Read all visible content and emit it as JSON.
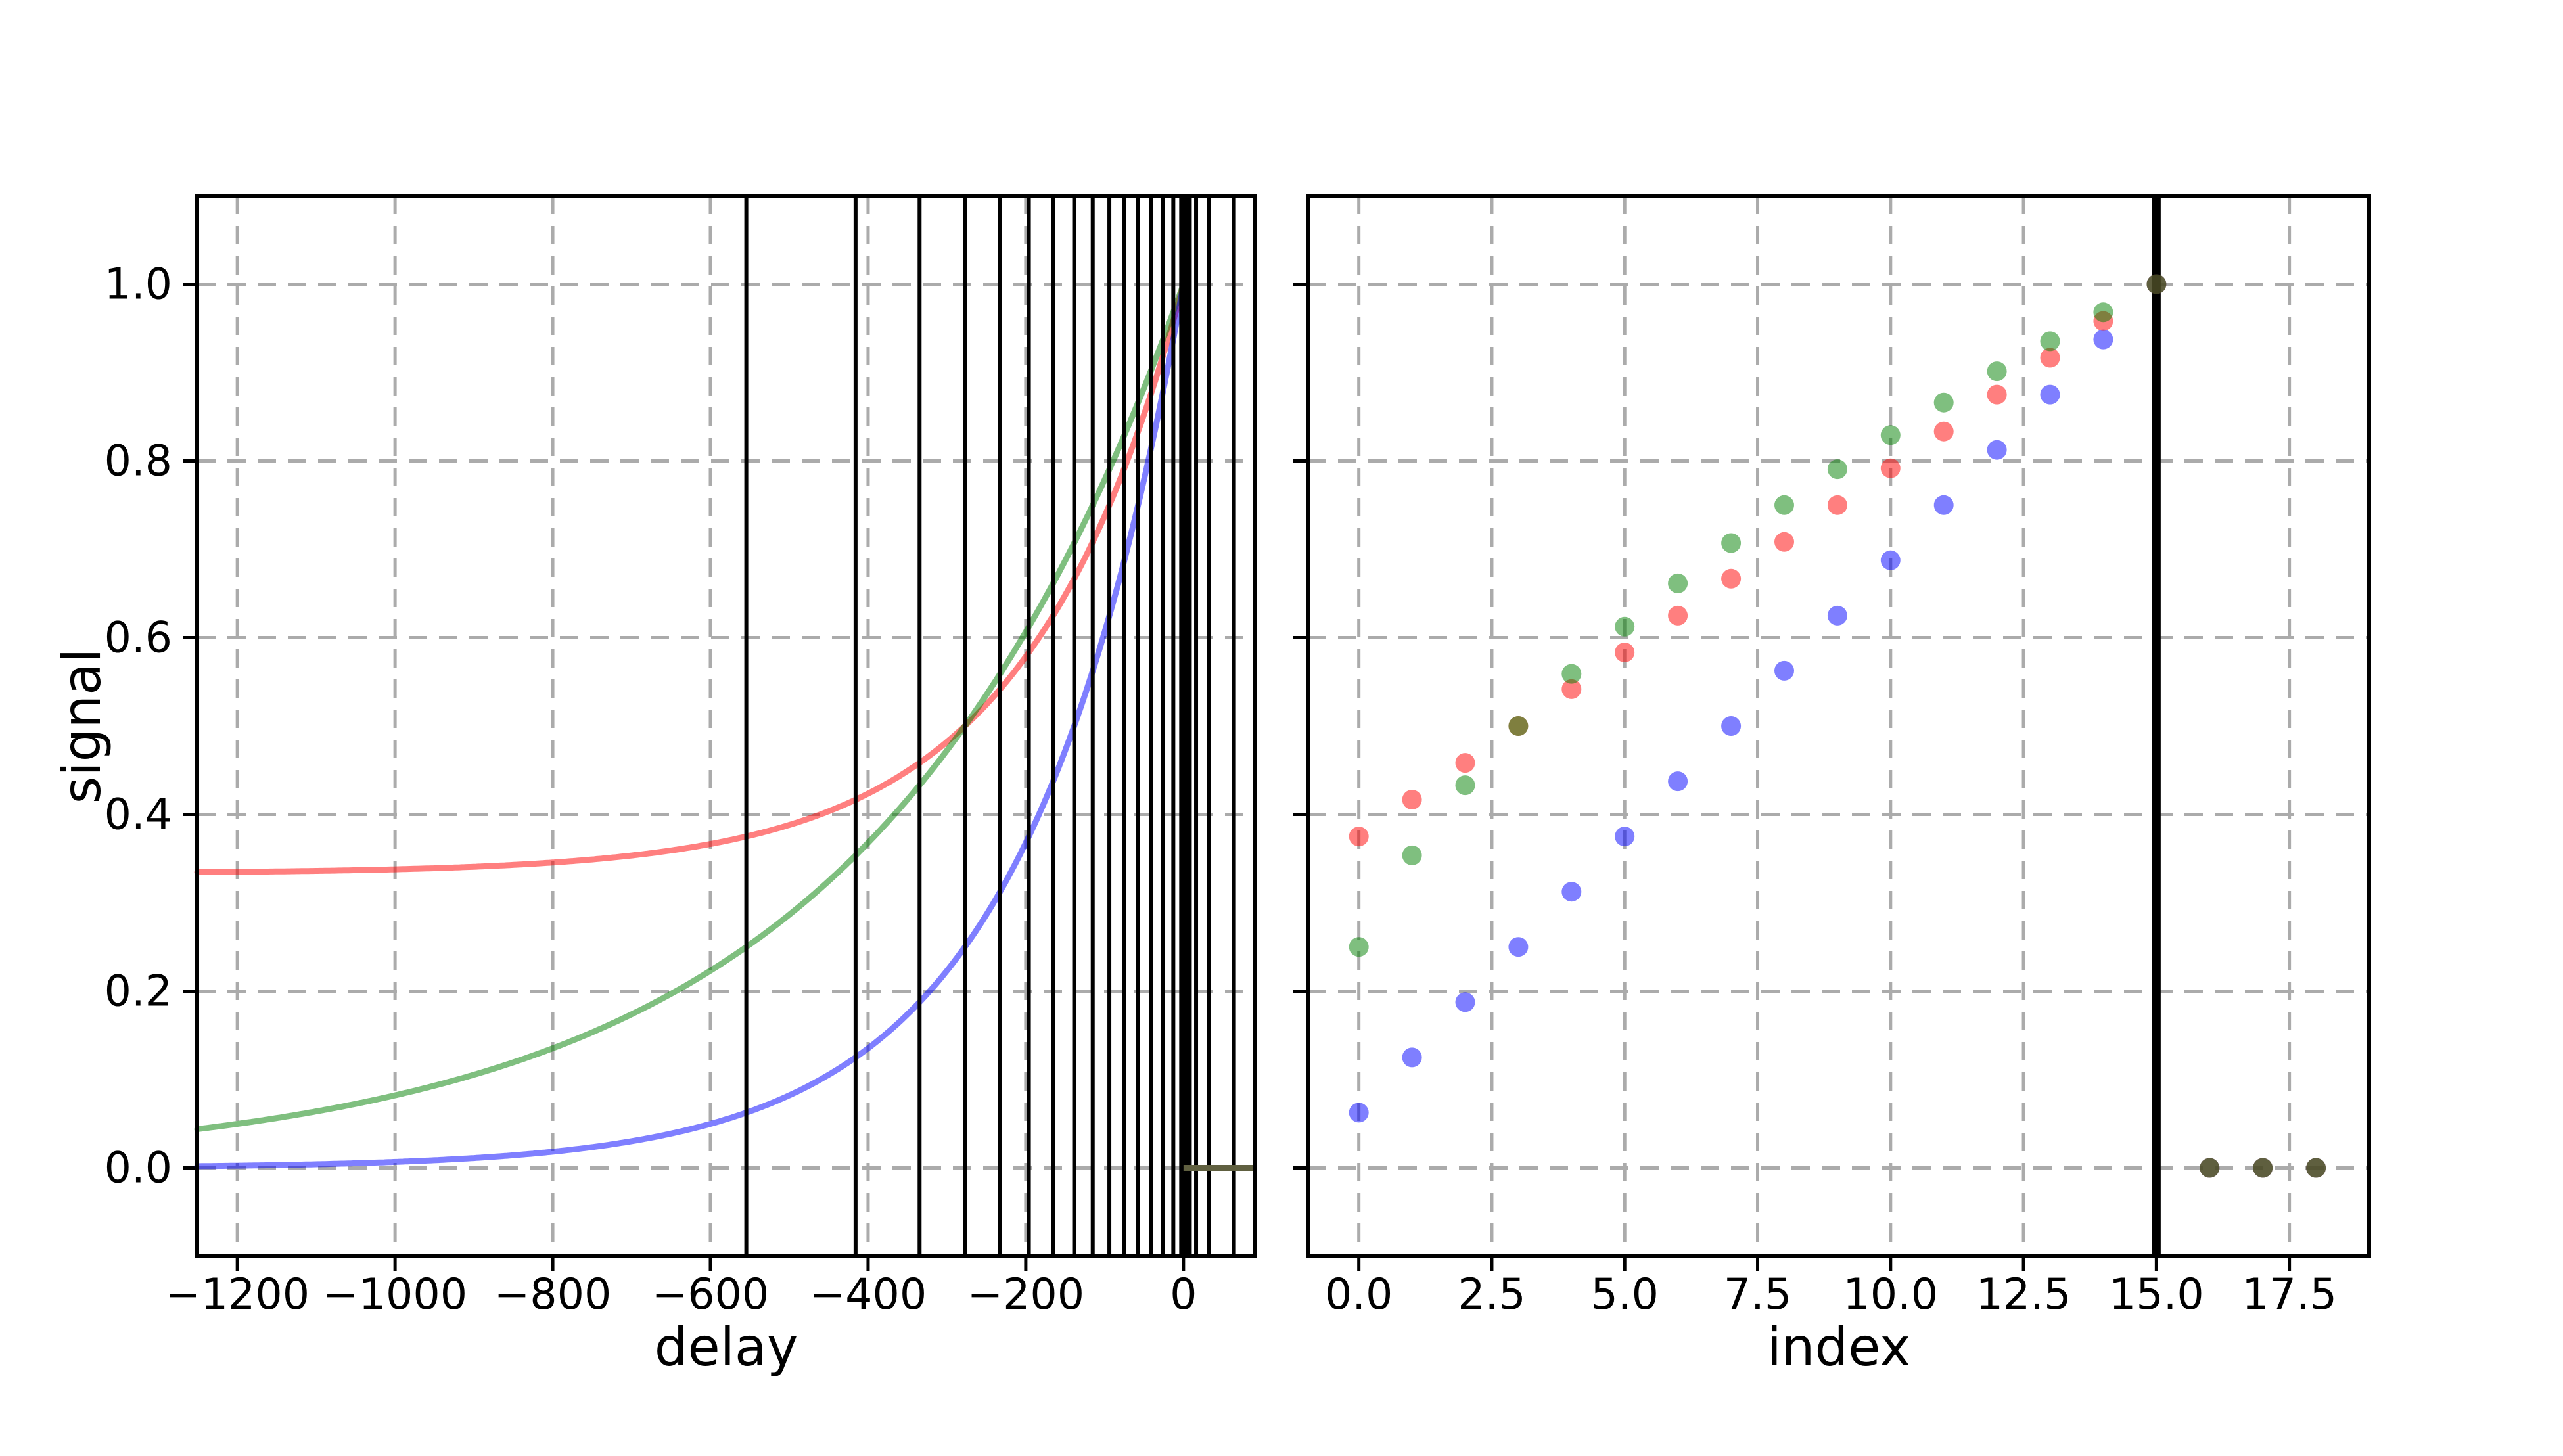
{
  "figure": {
    "background": "#ffffff",
    "title": ""
  },
  "style": {
    "grid_color": "#ababab",
    "spine_color": "#000000",
    "tick_color": "#000000",
    "event_line_color": "#000000",
    "event_line_width": 6,
    "event_line_thick_width": 13,
    "curve_line_width": 9,
    "curve_alpha": 0.5,
    "dot_radius": 15,
    "dot_alpha": 0.5,
    "zero_line_color": "#606040",
    "zero_line_width": 9,
    "series_colors": {
      "red": "#ff0000",
      "green": "#008000",
      "blue": "#0000ff"
    }
  },
  "chart_data": [
    {
      "id": "left",
      "type": "line",
      "xlabel": "delay",
      "ylabel": "signal",
      "xlim": [
        -1251,
        91
      ],
      "ylim": [
        -0.1,
        1.1
      ],
      "xticks": [
        -1200,
        -1000,
        -800,
        -600,
        -400,
        -200,
        0
      ],
      "xtick_labels": [
        "−1200",
        "−1000",
        "−800",
        "−600",
        "−400",
        "−200",
        "0"
      ],
      "yticks": [
        0.0,
        0.2,
        0.4,
        0.6,
        0.8,
        1.0
      ],
      "ytick_labels": [
        "0.0",
        "0.2",
        "0.4",
        "0.6",
        "0.8",
        "1.0"
      ],
      "grid": true,
      "legend": "none",
      "curves": [
        {
          "name": "red-curve",
          "color": "#ff0000",
          "model": "base_plus_amp_times_exp_t_over_tau",
          "base": 0.33333,
          "amp": 0.66667,
          "tau": 200,
          "domain": [
            -1251,
            0
          ]
        },
        {
          "name": "green-curve",
          "color": "#008000",
          "model": "base_plus_amp_times_exp_t_over_tau",
          "base": 0.0,
          "amp": 1.0,
          "tau": 400,
          "domain": [
            -1251,
            0
          ]
        },
        {
          "name": "blue-curve",
          "color": "#0000ff",
          "model": "base_plus_amp_times_exp_t_over_tau",
          "base": 0.0,
          "amp": 1.0,
          "tau": 200,
          "domain": [
            -1251,
            0
          ]
        }
      ],
      "event_line_delays": [
        -554.5,
        -415.9,
        -334.7,
        -277.3,
        -232.6,
        -196.1,
        -165.3,
        -138.6,
        -115.1,
        -94.0,
        -75.0,
        -57.5,
        -41.4,
        -26.4,
        -12.9,
        0,
        8,
        16,
        32,
        64
      ],
      "thick_event_line_at": 0,
      "zero_signal_line": {
        "x_from": 0,
        "x_to": 91,
        "y": 0
      }
    },
    {
      "id": "right",
      "type": "scatter",
      "xlabel": "index",
      "ylabel": "",
      "xlim": [
        -0.96,
        19.0
      ],
      "ylim": [
        -0.1,
        1.1
      ],
      "xticks": [
        0,
        2.5,
        5,
        7.5,
        10,
        12.5,
        15,
        17.5
      ],
      "xtick_labels": [
        "0.0",
        "2.5",
        "5.0",
        "7.5",
        "10.0",
        "12.5",
        "15.0",
        "17.5"
      ],
      "yticks": [
        0.0,
        0.2,
        0.4,
        0.6,
        0.8,
        1.0
      ],
      "ytick_labels": [],
      "grid": true,
      "legend": "none",
      "x": [
        0,
        1,
        2,
        3,
        4,
        5,
        6,
        7,
        8,
        9,
        10,
        11,
        12,
        13,
        14,
        15,
        16,
        17,
        18
      ],
      "series": [
        {
          "name": "blue-dots",
          "color": "#0000ff",
          "values": [
            0.0625,
            0.125,
            0.1875,
            0.25,
            0.3125,
            0.375,
            0.4375,
            0.5,
            0.5625,
            0.625,
            0.6875,
            0.75,
            0.8125,
            0.875,
            0.9375,
            1.0,
            0.0,
            0.0,
            0.0
          ]
        },
        {
          "name": "red-dots",
          "color": "#ff0000",
          "values": [
            0.375,
            0.4167,
            0.4583,
            0.5,
            0.5417,
            0.5833,
            0.625,
            0.6667,
            0.7083,
            0.75,
            0.7917,
            0.8333,
            0.875,
            0.9167,
            0.9583,
            1.0,
            0.0,
            0.0,
            0.0
          ]
        },
        {
          "name": "green-dots",
          "color": "#008000",
          "values": [
            0.25,
            0.3536,
            0.433,
            0.5,
            0.559,
            0.6124,
            0.6614,
            0.7071,
            0.75,
            0.7906,
            0.8292,
            0.866,
            0.9014,
            0.9354,
            0.9682,
            1.0,
            0.0,
            0.0,
            0.0
          ]
        }
      ],
      "index_marker_line_x": 15
    }
  ]
}
